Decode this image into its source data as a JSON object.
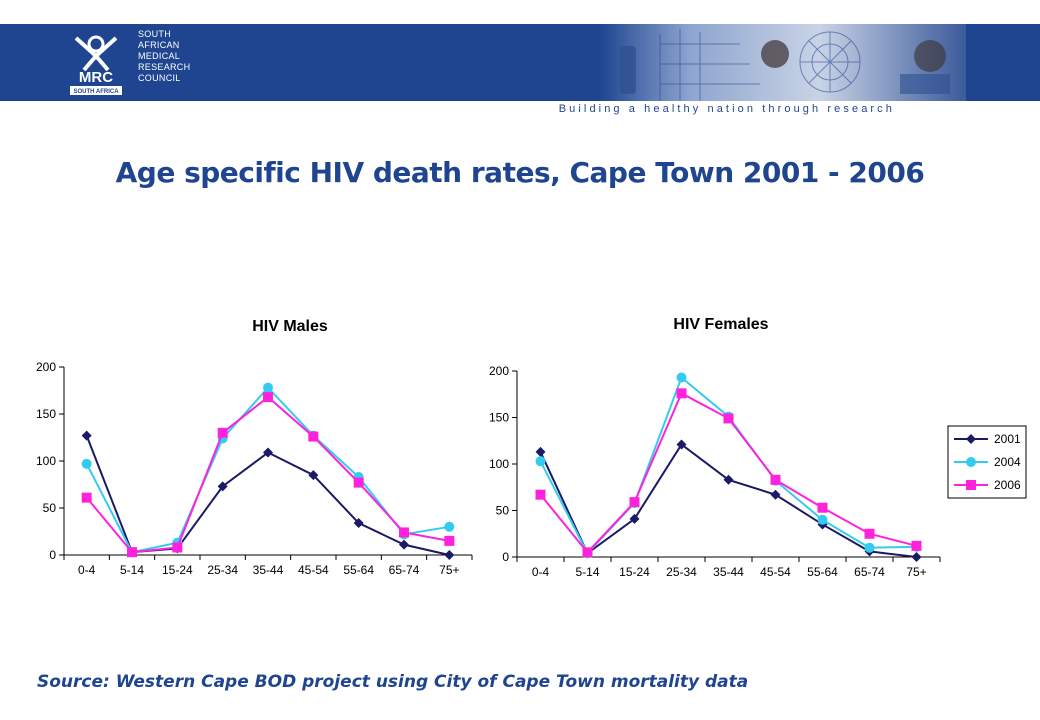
{
  "header": {
    "org_lines": [
      "SOUTH",
      "AFRICAN",
      "MEDICAL",
      "RESEARCH",
      "COUNCIL"
    ],
    "logo_text": "MRC",
    "logo_sub": "SOUTH AFRICA",
    "tagline": "Building a healthy nation through research",
    "colors": {
      "banner": "#1f4591",
      "title": "#1f4591"
    }
  },
  "title": "Age specific HIV death rates, Cape Town 2001 - 2006",
  "source": "Source: Western Cape BOD project using City of Cape Town mortality data",
  "chart_data": [
    {
      "type": "line",
      "title": "HIV Males",
      "categories": [
        "0-4",
        "5-14",
        "15-24",
        "25-34",
        "35-44",
        "45-54",
        "55-64",
        "65-74",
        "75+"
      ],
      "ylim": [
        0,
        200
      ],
      "yticks": [
        0,
        50,
        100,
        150,
        200
      ],
      "grid": false,
      "legend": "none",
      "series": [
        {
          "name": "2001",
          "color": "#1a1a66",
          "marker": "diamond",
          "values": [
            127,
            3,
            7,
            73,
            109,
            85,
            34,
            11,
            0
          ]
        },
        {
          "name": "2004",
          "color": "#33ccee",
          "marker": "circle",
          "values": [
            97,
            3,
            13,
            124,
            178,
            127,
            83,
            22,
            30
          ]
        },
        {
          "name": "2006",
          "color": "#ff22dd",
          "marker": "square",
          "values": [
            61,
            3,
            8,
            130,
            168,
            126,
            77,
            24,
            15
          ]
        }
      ]
    },
    {
      "type": "line",
      "title": "HIV Females",
      "categories": [
        "0-4",
        "5-14",
        "15-24",
        "25-34",
        "35-44",
        "45-54",
        "55-64",
        "65-74",
        "75+"
      ],
      "ylim": [
        0,
        200
      ],
      "yticks": [
        0,
        50,
        100,
        150,
        200
      ],
      "grid": false,
      "legend": "right",
      "series": [
        {
          "name": "2001",
          "color": "#1a1a66",
          "marker": "diamond",
          "values": [
            113,
            4,
            41,
            121,
            83,
            67,
            35,
            6,
            0
          ]
        },
        {
          "name": "2004",
          "color": "#33ccee",
          "marker": "circle",
          "values": [
            103,
            4,
            58,
            193,
            151,
            82,
            40,
            10,
            11
          ]
        },
        {
          "name": "2006",
          "color": "#ff22dd",
          "marker": "square",
          "values": [
            67,
            5,
            59,
            176,
            149,
            83,
            53,
            25,
            12
          ]
        }
      ]
    }
  ]
}
